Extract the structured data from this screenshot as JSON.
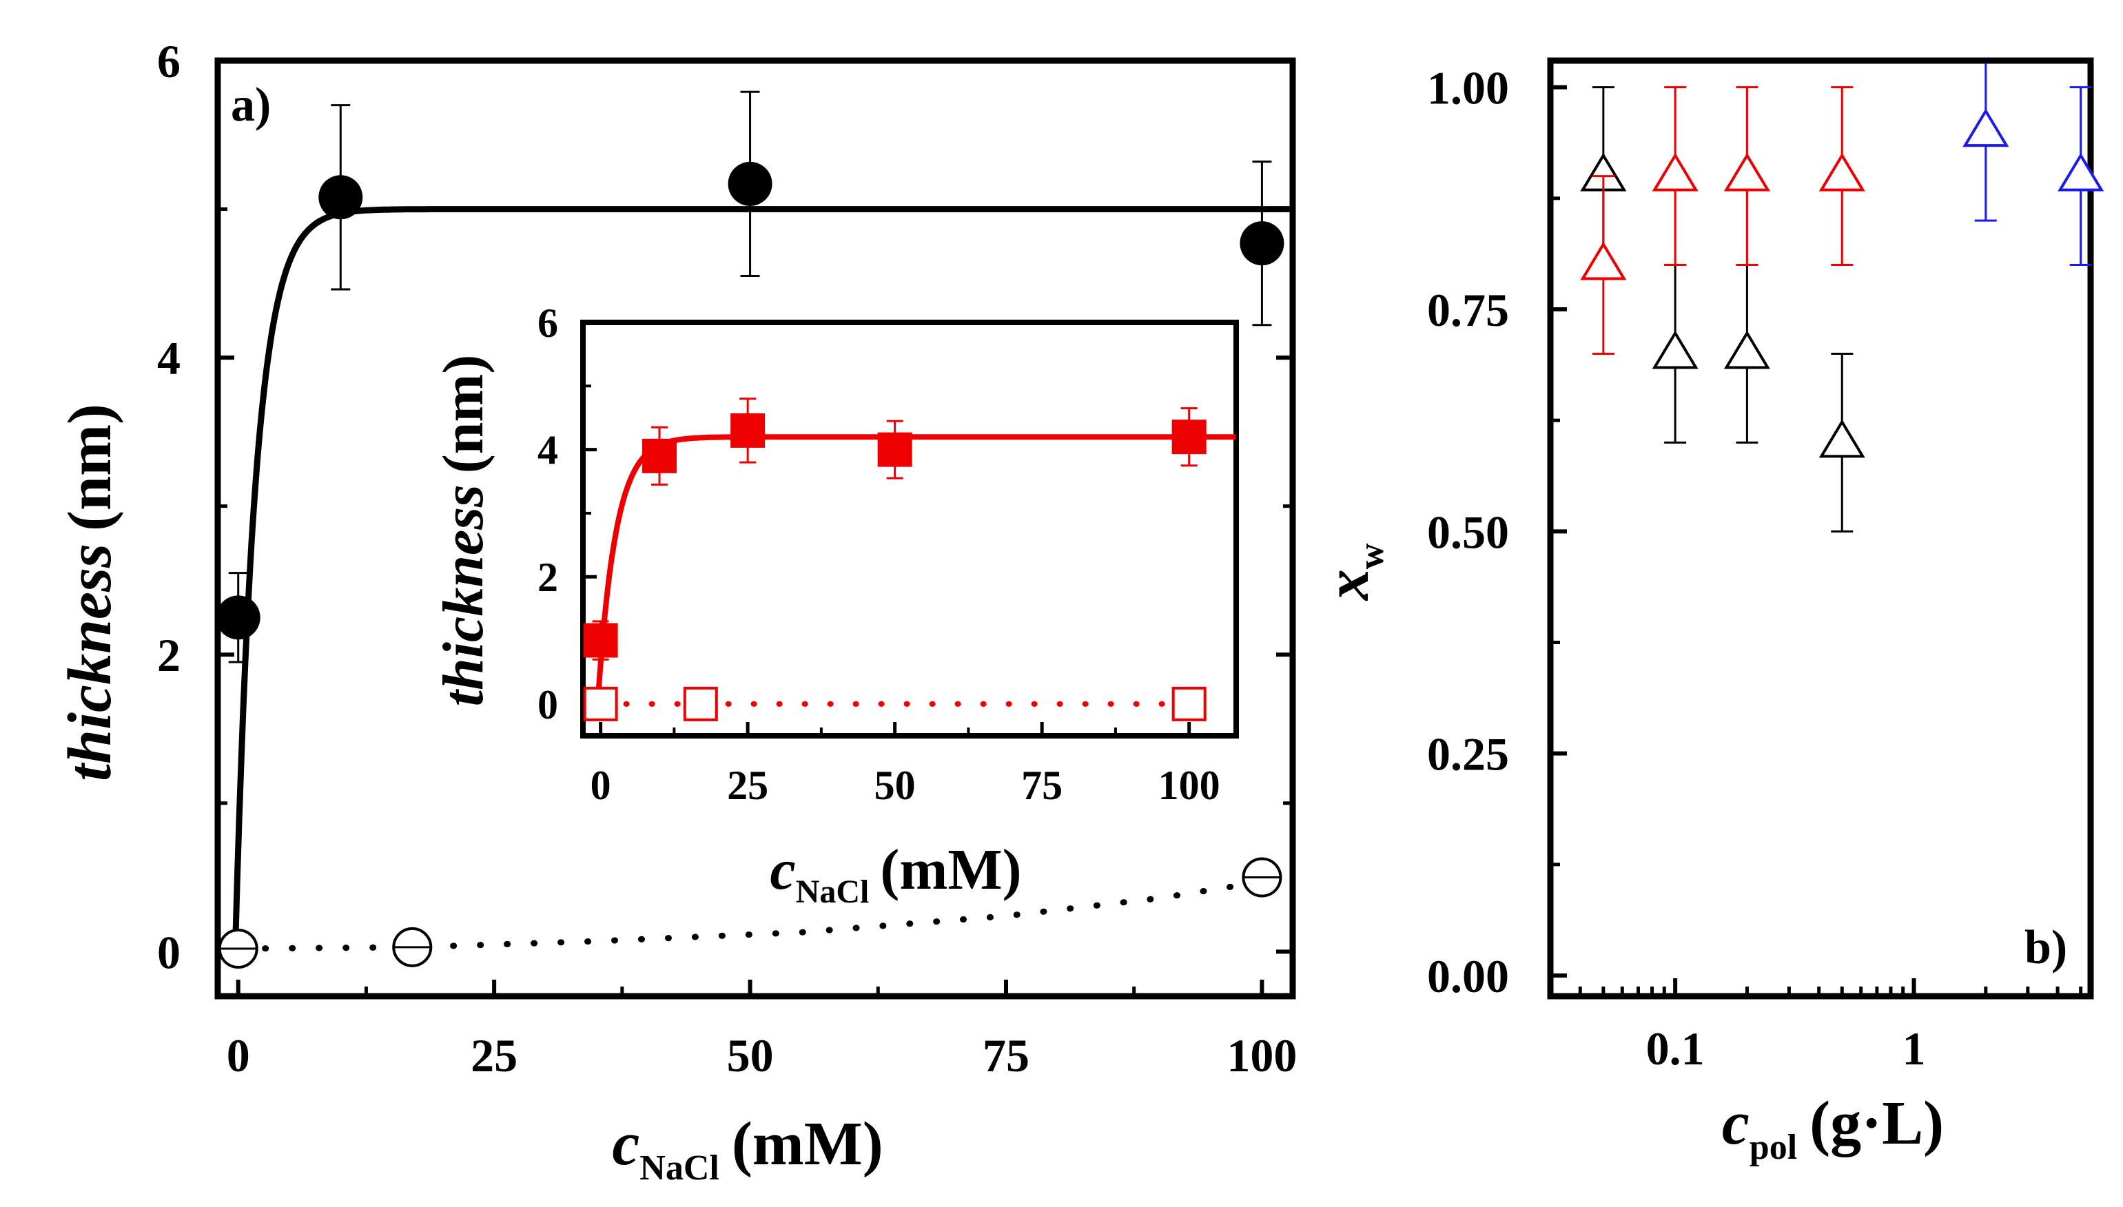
{
  "chart_data": [
    {
      "panel": "a)",
      "type": "scatter",
      "xlabel": {
        "main": "c",
        "sub": "NaCl",
        "unit": "(mM)"
      },
      "ylabel": {
        "main": "thickness",
        "unit": "(nm)"
      },
      "xlim": [
        -2,
        103
      ],
      "ylim": [
        -0.3,
        6
      ],
      "xticks": [
        0,
        25,
        50,
        75,
        100
      ],
      "yticks": [
        0,
        2,
        4,
        6
      ],
      "grid": false,
      "series": [
        {
          "name": "filled circles",
          "marker": "filled-circle",
          "color": "#000000",
          "x": [
            0,
            10,
            50,
            100
          ],
          "y": [
            2.25,
            5.08,
            5.17,
            4.77
          ],
          "err": [
            0.3,
            0.62,
            0.62,
            0.55
          ]
        },
        {
          "name": "open crossed circles",
          "marker": "open-crossed-circle",
          "color": "#000000",
          "x": [
            0,
            17,
            100
          ],
          "y": [
            0.02,
            0.03,
            0.5
          ],
          "err": [
            0.1,
            0.1,
            0.1
          ]
        }
      ],
      "fit_solid": {
        "color": "#000000",
        "A": 5.0,
        "x0": -0.3,
        "k": 0.5
      },
      "fit_dotted": {
        "color": "#000000",
        "x": [
          0,
          17,
          35,
          55,
          75,
          90,
          100
        ],
        "y": [
          0.02,
          0.03,
          0.07,
          0.13,
          0.24,
          0.36,
          0.47
        ]
      },
      "inset": {
        "type": "scatter",
        "xlabel": {
          "main": "c",
          "sub": "NaCl",
          "unit": "(mM)"
        },
        "ylabel": {
          "main": "thickness",
          "unit": "(nm)"
        },
        "xlim": [
          -3,
          108
        ],
        "ylim": [
          -0.5,
          6
        ],
        "xticks": [
          0,
          25,
          50,
          75,
          100
        ],
        "yticks": [
          0,
          2,
          4,
          6
        ],
        "series": [
          {
            "name": "filled squares",
            "marker": "filled-square",
            "color": "#ee0000",
            "x": [
              0,
              10,
              25,
              50,
              100
            ],
            "y": [
              1.0,
              3.9,
              4.3,
              4.0,
              4.2
            ],
            "err": [
              0.3,
              0.45,
              0.5,
              0.45,
              0.45
            ]
          },
          {
            "name": "open squares",
            "marker": "open-square",
            "color": "#ee0000",
            "x": [
              0,
              17,
              100
            ],
            "y": [
              0,
              0,
              0
            ]
          }
        ],
        "fit_solid": {
          "color": "#ee0000",
          "A": 4.2,
          "x0": -0.5,
          "k": 0.33
        },
        "fit_dotted": {
          "color": "#ee0000",
          "x": [
            0,
            100
          ],
          "y": [
            0,
            0
          ]
        }
      }
    },
    {
      "panel": "b)",
      "type": "scatter",
      "xscale": "log",
      "xlabel": {
        "main": "c",
        "sub": "pol",
        "unit": "(g·L)"
      },
      "ylabel": {
        "main": "x",
        "sub": "w"
      },
      "xlim": [
        0.03,
        5.5
      ],
      "ylim": [
        0,
        1.03
      ],
      "xticks": [
        0.1,
        1
      ],
      "xtick_labels": [
        "0.1",
        "1"
      ],
      "yticks": [
        0,
        0.25,
        0.5,
        0.75,
        1.0
      ],
      "ytick_labels": [
        "0.00",
        "0.25",
        "0.50",
        "0.75",
        "1.00"
      ],
      "grid": false,
      "series": [
        {
          "name": "black triangles",
          "marker": "open-triangle",
          "color": "#000000",
          "x": [
            0.05,
            0.1,
            0.2,
            0.5
          ],
          "y": [
            0.9,
            0.7,
            0.7,
            0.6
          ],
          "err": [
            0.1,
            0.1,
            0.1,
            0.1
          ]
        },
        {
          "name": "red triangles",
          "marker": "open-triangle",
          "color": "#ee0000",
          "x": [
            0.05,
            0.1,
            0.2,
            0.5
          ],
          "y": [
            0.8,
            0.9,
            0.9,
            0.9
          ],
          "err": [
            0.1,
            0.1,
            0.1,
            0.1
          ]
        },
        {
          "name": "blue triangles",
          "marker": "open-triangle",
          "color": "#1a1aee",
          "x": [
            2,
            5
          ],
          "y": [
            0.95,
            0.9
          ],
          "err": [
            0.1,
            0.1
          ]
        }
      ]
    }
  ]
}
